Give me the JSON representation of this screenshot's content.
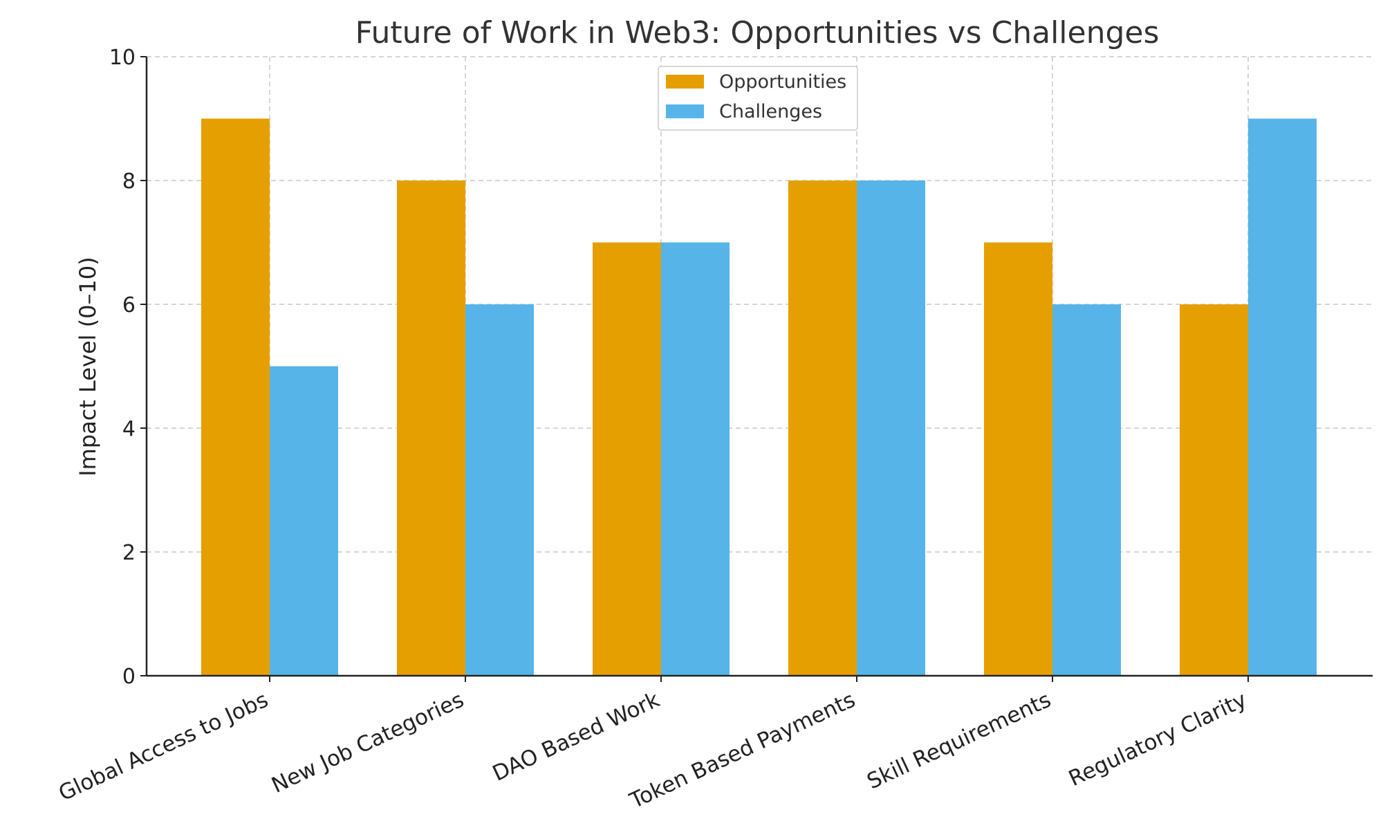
{
  "chart_data": {
    "type": "bar",
    "title": "Future of Work in Web3: Opportunities vs Challenges",
    "xlabel": "",
    "ylabel": "Impact Level (0–10)",
    "categories": [
      "Global Access to Jobs",
      "New Job Categories",
      "DAO Based Work",
      "Token Based Payments",
      "Skill Requirements",
      "Regulatory Clarity"
    ],
    "series": [
      {
        "name": "Opportunities",
        "values": [
          9,
          8,
          7,
          8,
          7,
          6
        ],
        "color": "#E69F00"
      },
      {
        "name": "Challenges",
        "values": [
          5,
          6,
          7,
          8,
          6,
          9
        ],
        "color": "#56B4E9"
      }
    ],
    "ylim": [
      0,
      10
    ],
    "yticks": [
      "0",
      "2",
      "4",
      "6",
      "8",
      "10"
    ],
    "grid": true,
    "legend_position": "top-center"
  }
}
